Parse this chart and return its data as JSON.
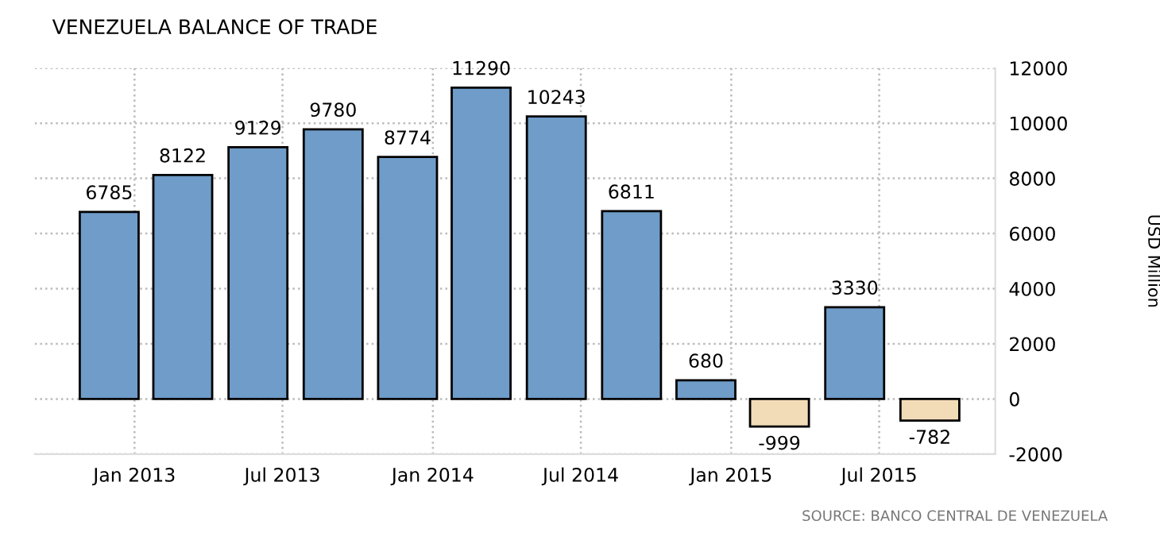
{
  "chart_data": {
    "type": "bar",
    "title": "VENEZUELA BALANCE OF TRADE",
    "ylabel": "USD Million",
    "x": [
      "2012-12",
      "2013-03",
      "2013-06",
      "2013-09",
      "2013-12",
      "2014-03",
      "2014-06",
      "2014-09",
      "2014-12",
      "2015-03",
      "2015-06",
      "2015-09"
    ],
    "values": [
      6785,
      8122,
      9129,
      9780,
      8774,
      11290,
      10243,
      6811,
      680,
      -999,
      3330,
      -782
    ],
    "colors": [
      "#6f9cc8",
      "#6f9cc8",
      "#6f9cc8",
      "#6f9cc8",
      "#6f9cc8",
      "#6f9cc8",
      "#6f9cc8",
      "#6f9cc8",
      "#6f9cc8",
      "#f2dcb8",
      "#6f9cc8",
      "#f2dcb8"
    ],
    "data_labels": true,
    "xlim": [
      "2012-09-01",
      "2015-11-20"
    ],
    "xticks": [
      {
        "value": "2013-01",
        "label": "Jan 2013"
      },
      {
        "value": "2013-07",
        "label": "Jul 2013"
      },
      {
        "value": "2014-01",
        "label": "Jan 2014"
      },
      {
        "value": "2014-07",
        "label": "Jul 2014"
      },
      {
        "value": "2015-01",
        "label": "Jan 2015"
      },
      {
        "value": "2015-07",
        "label": "Jul 2015"
      }
    ],
    "ylim": [
      -2000,
      12000
    ],
    "yticks": [
      -2000,
      0,
      2000,
      4000,
      6000,
      8000,
      10000,
      12000
    ],
    "grid": true,
    "annotations": [
      "SOURCE: BANCO CENTRAL DE VENEZUELA"
    ]
  }
}
